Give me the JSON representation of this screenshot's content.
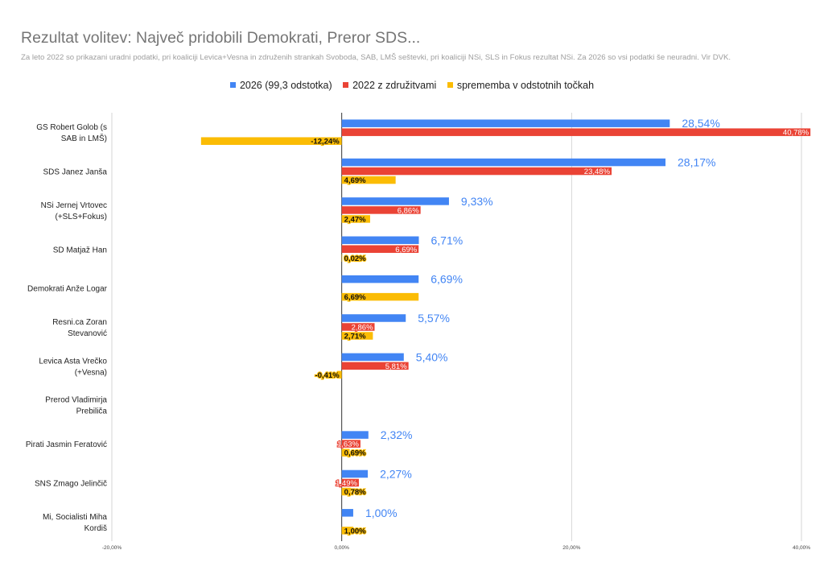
{
  "colors": {
    "s2026": "#4285f4",
    "s2022": "#ea4335",
    "change": "#fbbc04",
    "label2026": "#4285f4",
    "grid": "#cccccc",
    "zero": "#333333"
  },
  "chart_data": {
    "type": "bar",
    "orientation": "horizontal",
    "title": "Rezultat volitev: Največ pridobili Demokrati, Preror SDS...",
    "subtitle": "Za leto 2022 so prikazani uradni podatki, pri koaliciji Levica+Vesna in združenih strankah Svoboda, SAB, LMŠ seštevki, pri koaliciji NSi, SLS in Fokus rezultat  NSi. Za 2026 so vsi podatki še neuradni. Vir DVK.",
    "legend_position": "top",
    "grid": true,
    "xlim": [
      -20,
      40
    ],
    "x_ticks": [
      -20,
      0,
      20,
      40
    ],
    "x_tick_labels": [
      "-20,00%",
      "0,00%",
      "20,00%",
      "40,00%"
    ],
    "categories": [
      [
        "GS Robert Golob (s",
        "SAB in LMŠ)"
      ],
      [
        "SDS Janez Janša"
      ],
      [
        "NSi Jernej Vrtovec",
        "(+SLS+Fokus)"
      ],
      [
        "SD Matjaž Han"
      ],
      [
        "Demokrati Anže Logar"
      ],
      [
        "Resni.ca Zoran",
        "Stevanović"
      ],
      [
        "Levica Asta Vrečko",
        "(+Vesna)"
      ],
      [
        "Prerod Vladimirja",
        "Prebiliča"
      ],
      [
        "Pirati Jasmin Feratović"
      ],
      [
        "SNS Zmago Jelinčič"
      ],
      [
        "Mi, Socialisti Miha",
        "Kordiš"
      ]
    ],
    "series": [
      {
        "name": "2026 (99,3 odstotka)",
        "values": [
          28.54,
          28.17,
          9.33,
          6.71,
          6.69,
          5.57,
          5.4,
          null,
          2.32,
          2.27,
          1.0
        ],
        "labels": [
          "28,54%",
          "28,17%",
          "9,33%",
          "6,71%",
          "6,69%",
          "5,57%",
          "5,40%",
          "",
          "2,32%",
          "2,27%",
          "1,00%"
        ]
      },
      {
        "name": "2022 z združitvami",
        "values": [
          40.78,
          23.48,
          6.86,
          6.69,
          null,
          2.86,
          5.81,
          null,
          1.63,
          1.49,
          null
        ],
        "labels": [
          "40,78%",
          "23,48%",
          "6,86%",
          "6,69%",
          "",
          "2,86%",
          "5,81%",
          "",
          "1,63%",
          "1,49%",
          ""
        ]
      },
      {
        "name": "sprememba v odstotnih točkah",
        "values": [
          -12.24,
          4.69,
          2.47,
          0.02,
          6.69,
          2.71,
          -0.41,
          null,
          0.69,
          0.78,
          1.0
        ],
        "labels": [
          "-12,24%",
          "4,69%",
          "2,47%",
          "0,02%",
          "6,69%",
          "2,71%",
          "-0,41%",
          "",
          "0,69%",
          "0,78%",
          "1,00%"
        ]
      }
    ]
  }
}
